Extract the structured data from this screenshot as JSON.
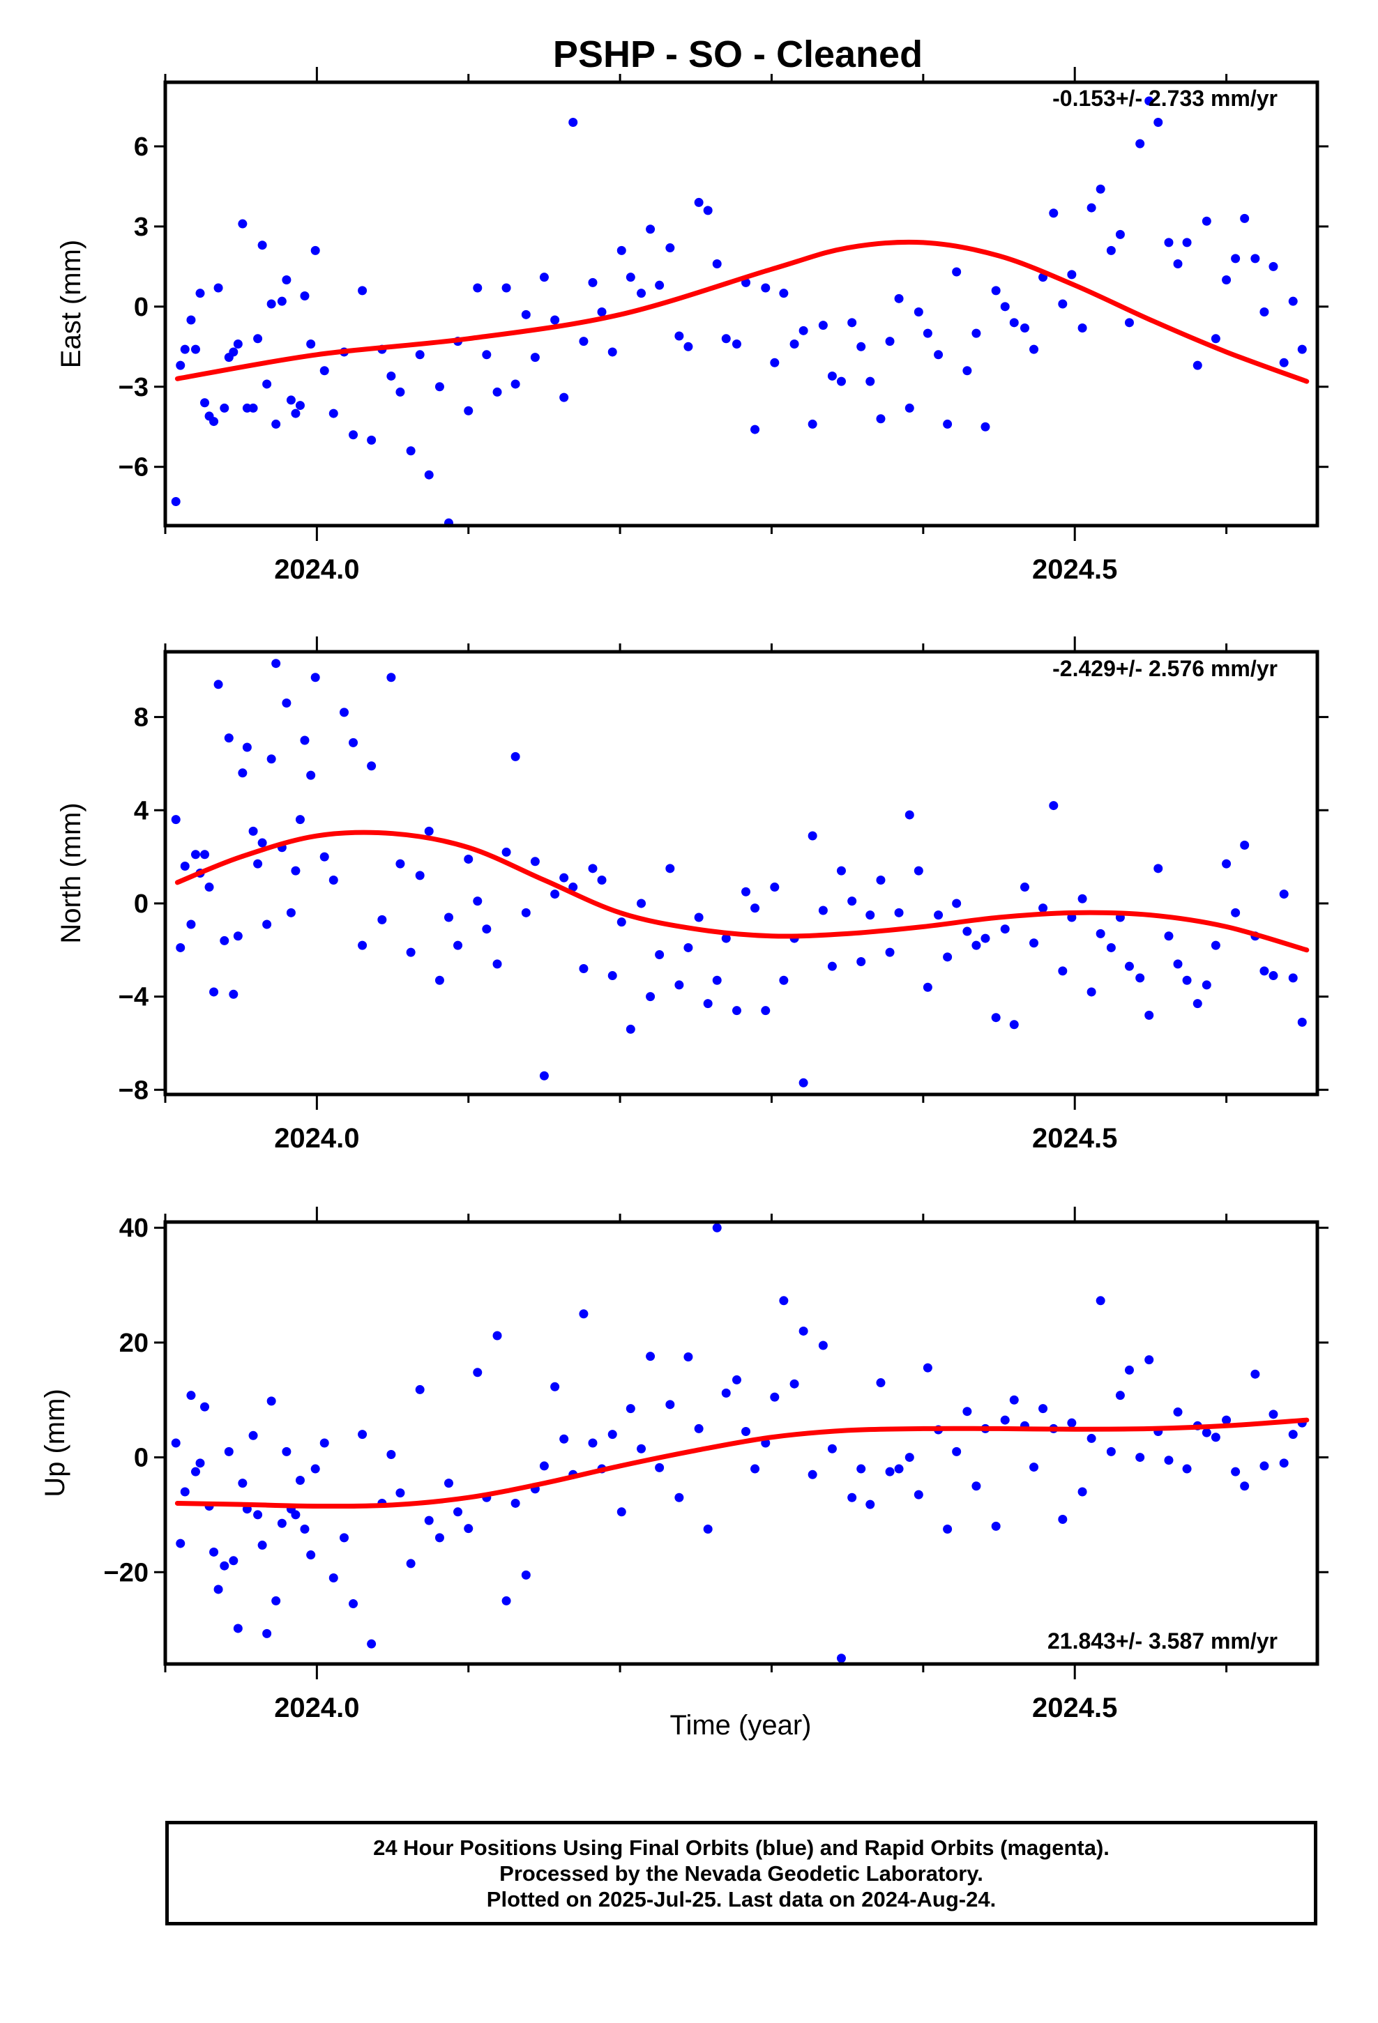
{
  "title": "PSHP  - SO - Cleaned",
  "x_axis_label": "Time (year)",
  "footer": {
    "line1": "24 Hour Positions Using Final Orbits (blue) and Rapid Orbits (magenta).",
    "line2": "Processed by the Nevada Geodetic Laboratory.",
    "line3": "Plotted on 2025-Jul-25. Last data on 2024-Aug-24."
  },
  "colors": {
    "points": "#0000ff",
    "fit": "#ff0000",
    "axes": "#000000"
  },
  "chart_data": [
    {
      "type": "scatter",
      "ylabel": "East (mm)",
      "rate_text": "-0.153+/- 2.733 mm/yr",
      "xlim": [
        2023.9,
        2024.66
      ],
      "ylim": [
        -8.2,
        8.4
      ],
      "yticks": [
        -6,
        -3,
        0,
        3,
        6
      ],
      "xticks": [
        2024.0,
        2024.5
      ],
      "series": [
        {
          "x": [
            2023.907,
            2023.91,
            2023.913,
            2023.917,
            2023.92,
            2023.923,
            2023.926,
            2023.929,
            2023.932,
            2023.935,
            2023.939,
            2023.942,
            2023.945,
            2023.948,
            2023.951,
            2023.954,
            2023.958,
            2023.961,
            2023.964,
            2023.967,
            2023.97,
            2023.973,
            2023.977,
            2023.98,
            2023.983,
            2023.986,
            2023.989,
            2023.992,
            2023.996,
            2023.999,
            2024.005,
            2024.011,
            2024.018,
            2024.024,
            2024.03,
            2024.036,
            2024.043,
            2024.049,
            2024.055,
            2024.062,
            2024.068,
            2024.074,
            2024.081,
            2024.087,
            2024.093,
            2024.1,
            2024.106,
            2024.112,
            2024.119,
            2024.125,
            2024.131,
            2024.138,
            2024.144,
            2024.15,
            2024.157,
            2024.163,
            2024.169,
            2024.176,
            2024.182,
            2024.188,
            2024.195,
            2024.201,
            2024.207,
            2024.214,
            2024.22,
            2024.226,
            2024.233,
            2024.239,
            2024.245,
            2024.252,
            2024.258,
            2024.264,
            2024.27,
            2024.277,
            2024.283,
            2024.289,
            2024.296,
            2024.302,
            2024.308,
            2024.315,
            2024.321,
            2024.327,
            2024.334,
            2024.34,
            2024.346,
            2024.353,
            2024.359,
            2024.365,
            2024.372,
            2024.378,
            2024.384,
            2024.391,
            2024.397,
            2024.403,
            2024.41,
            2024.416,
            2024.422,
            2024.429,
            2024.435,
            2024.441,
            2024.448,
            2024.454,
            2024.46,
            2024.467,
            2024.473,
            2024.479,
            2024.486,
            2024.492,
            2024.498,
            2024.505,
            2024.511,
            2024.517,
            2024.524,
            2024.53,
            2024.536,
            2024.543,
            2024.549,
            2024.555,
            2024.562,
            2024.568,
            2024.574,
            2024.581,
            2024.587,
            2024.593,
            2024.6,
            2024.606,
            2024.612,
            2024.619,
            2024.625,
            2024.631,
            2024.638,
            2024.644,
            2024.65
          ],
          "y": [
            -7.3,
            -2.2,
            -1.6,
            -0.5,
            -1.6,
            0.5,
            -3.6,
            -4.1,
            -4.3,
            0.7,
            -3.8,
            -1.9,
            -1.7,
            -1.4,
            3.1,
            -3.8,
            -3.8,
            -1.2,
            2.3,
            -2.9,
            0.1,
            -4.4,
            0.2,
            1.0,
            -3.5,
            -4.0,
            -3.7,
            0.4,
            -1.4,
            2.1,
            -2.4,
            -4.0,
            -1.7,
            -4.8,
            0.6,
            -5.0,
            -1.6,
            -2.6,
            -3.2,
            -5.4,
            -1.8,
            -6.3,
            -3.0,
            -8.1,
            -1.3,
            -3.9,
            0.7,
            -1.8,
            -3.2,
            0.7,
            -2.9,
            -0.3,
            -1.9,
            1.1,
            -0.5,
            -3.4,
            6.9,
            -1.3,
            0.9,
            -0.2,
            -1.7,
            2.1,
            1.1,
            0.5,
            2.9,
            0.8,
            2.2,
            -1.1,
            -1.5,
            3.9,
            3.6,
            1.6,
            -1.2,
            -1.4,
            0.9,
            -4.6,
            0.7,
            -2.1,
            0.5,
            -1.4,
            -0.9,
            -4.4,
            -0.7,
            -2.6,
            -2.8,
            -0.6,
            -1.5,
            -2.8,
            -4.2,
            -1.3,
            0.3,
            -3.8,
            -0.2,
            -1.0,
            -1.8,
            -4.4,
            1.3,
            -2.4,
            -1.0,
            -4.5,
            0.6,
            0.0,
            -0.6,
            -0.8,
            -1.6,
            1.1,
            3.5,
            0.1,
            1.2,
            -0.8,
            3.7,
            4.4,
            2.1,
            2.7,
            -0.6,
            6.1,
            7.7,
            6.9,
            2.4,
            1.6,
            2.4,
            -2.2,
            3.2,
            -1.2,
            1.0,
            1.8,
            3.3,
            1.8,
            -0.2,
            1.5,
            -2.1,
            0.2,
            -1.6
          ],
          "color": "#0000ff"
        },
        {
          "name": "fit",
          "x": [
            2023.908,
            2024.0,
            2024.1,
            2024.2,
            2024.3,
            2024.35,
            2024.4,
            2024.45,
            2024.5,
            2024.55,
            2024.6,
            2024.653
          ],
          "y": [
            -2.7,
            -1.8,
            -1.2,
            -0.3,
            1.4,
            2.2,
            2.4,
            1.9,
            0.8,
            -0.5,
            -1.7,
            -2.8
          ],
          "color": "#ff0000"
        }
      ]
    },
    {
      "type": "scatter",
      "ylabel": "North (mm)",
      "rate_text": "-2.429+/- 2.576 mm/yr",
      "xlim": [
        2023.9,
        2024.66
      ],
      "ylim": [
        -8.2,
        10.8
      ],
      "yticks": [
        -8,
        -4,
        0,
        4,
        8
      ],
      "xticks": [
        2024.0,
        2024.5
      ],
      "series": [
        {
          "x": [
            2023.907,
            2023.91,
            2023.913,
            2023.917,
            2023.92,
            2023.923,
            2023.926,
            2023.929,
            2023.932,
            2023.935,
            2023.939,
            2023.942,
            2023.945,
            2023.948,
            2023.951,
            2023.954,
            2023.958,
            2023.961,
            2023.964,
            2023.967,
            2023.97,
            2023.973,
            2023.977,
            2023.98,
            2023.983,
            2023.986,
            2023.989,
            2023.992,
            2023.996,
            2023.999,
            2024.005,
            2024.011,
            2024.018,
            2024.024,
            2024.03,
            2024.036,
            2024.043,
            2024.049,
            2024.055,
            2024.062,
            2024.068,
            2024.074,
            2024.081,
            2024.087,
            2024.093,
            2024.1,
            2024.106,
            2024.112,
            2024.119,
            2024.125,
            2024.131,
            2024.138,
            2024.144,
            2024.15,
            2024.157,
            2024.163,
            2024.169,
            2024.176,
            2024.182,
            2024.188,
            2024.195,
            2024.201,
            2024.207,
            2024.214,
            2024.22,
            2024.226,
            2024.233,
            2024.239,
            2024.245,
            2024.252,
            2024.258,
            2024.264,
            2024.27,
            2024.277,
            2024.283,
            2024.289,
            2024.296,
            2024.302,
            2024.308,
            2024.315,
            2024.321,
            2024.327,
            2024.334,
            2024.34,
            2024.346,
            2024.353,
            2024.359,
            2024.365,
            2024.372,
            2024.378,
            2024.384,
            2024.391,
            2024.397,
            2024.403,
            2024.41,
            2024.416,
            2024.422,
            2024.429,
            2024.435,
            2024.441,
            2024.448,
            2024.454,
            2024.46,
            2024.467,
            2024.473,
            2024.479,
            2024.486,
            2024.492,
            2024.498,
            2024.505,
            2024.511,
            2024.517,
            2024.524,
            2024.53,
            2024.536,
            2024.543,
            2024.549,
            2024.555,
            2024.562,
            2024.568,
            2024.574,
            2024.581,
            2024.587,
            2024.593,
            2024.6,
            2024.606,
            2024.612,
            2024.619,
            2024.625,
            2024.631,
            2024.638,
            2024.644,
            2024.65
          ],
          "y": [
            3.6,
            -1.9,
            1.6,
            -0.9,
            2.1,
            1.3,
            2.1,
            0.7,
            -3.8,
            9.4,
            -1.6,
            7.1,
            -3.9,
            -1.4,
            5.6,
            6.7,
            3.1,
            1.7,
            2.6,
            -0.9,
            6.2,
            10.3,
            2.4,
            8.6,
            -0.4,
            1.4,
            3.6,
            7.0,
            5.5,
            9.7,
            2.0,
            1.0,
            8.2,
            6.9,
            -1.8,
            5.9,
            -0.7,
            9.7,
            1.7,
            -2.1,
            1.2,
            3.1,
            -3.3,
            -0.6,
            -1.8,
            1.9,
            0.1,
            -1.1,
            -2.6,
            2.2,
            6.3,
            -0.4,
            1.8,
            -7.4,
            0.4,
            1.1,
            0.7,
            -2.8,
            1.5,
            1.0,
            -3.1,
            -0.8,
            -5.4,
            0.0,
            -4.0,
            -2.2,
            1.5,
            -3.5,
            -1.9,
            -0.6,
            -4.3,
            -3.3,
            -1.5,
            -4.6,
            0.5,
            -0.2,
            -4.6,
            0.7,
            -3.3,
            -1.5,
            -7.7,
            2.9,
            -0.3,
            -2.7,
            1.4,
            0.1,
            -2.5,
            -0.5,
            1.0,
            -2.1,
            -0.4,
            3.8,
            1.4,
            -3.6,
            -0.5,
            -2.3,
            0.0,
            -1.2,
            -1.8,
            -1.5,
            -4.9,
            -1.1,
            -5.2,
            0.7,
            -1.7,
            -0.2,
            4.2,
            -2.9,
            -0.6,
            0.2,
            -3.8,
            -1.3,
            -1.9,
            -0.6,
            -2.7,
            -3.2,
            -4.8,
            1.5,
            -1.4,
            -2.6,
            -3.3,
            -4.3,
            -3.5,
            -1.8,
            1.7,
            -0.4,
            2.5,
            -1.4,
            -2.9,
            -3.1,
            0.4,
            -3.2,
            -5.1
          ],
          "color": "#0000ff"
        },
        {
          "name": "fit",
          "x": [
            2023.908,
            2023.95,
            2024.0,
            2024.05,
            2024.1,
            2024.15,
            2024.2,
            2024.25,
            2024.3,
            2024.35,
            2024.4,
            2024.45,
            2024.5,
            2024.55,
            2024.6,
            2024.653
          ],
          "y": [
            0.9,
            2.0,
            2.9,
            3.0,
            2.4,
            1.0,
            -0.4,
            -1.1,
            -1.4,
            -1.3,
            -1.0,
            -0.6,
            -0.4,
            -0.5,
            -1.0,
            -2.0
          ],
          "color": "#ff0000"
        }
      ]
    },
    {
      "type": "scatter",
      "ylabel": "Up (mm)",
      "rate_text": "21.843+/- 3.587 mm/yr",
      "xlim": [
        2023.9,
        2024.66
      ],
      "ylim": [
        -36,
        41
      ],
      "yticks": [
        -20,
        0,
        20,
        40
      ],
      "xticks": [
        2024.0,
        2024.5
      ],
      "series": [
        {
          "x": [
            2023.907,
            2023.91,
            2023.913,
            2023.917,
            2023.92,
            2023.923,
            2023.926,
            2023.929,
            2023.932,
            2023.935,
            2023.939,
            2023.942,
            2023.945,
            2023.948,
            2023.951,
            2023.954,
            2023.958,
            2023.961,
            2023.964,
            2023.967,
            2023.97,
            2023.973,
            2023.977,
            2023.98,
            2023.983,
            2023.986,
            2023.989,
            2023.992,
            2023.996,
            2023.999,
            2024.005,
            2024.011,
            2024.018,
            2024.024,
            2024.03,
            2024.036,
            2024.043,
            2024.049,
            2024.055,
            2024.062,
            2024.068,
            2024.074,
            2024.081,
            2024.087,
            2024.093,
            2024.1,
            2024.106,
            2024.112,
            2024.119,
            2024.125,
            2024.131,
            2024.138,
            2024.144,
            2024.15,
            2024.157,
            2024.163,
            2024.169,
            2024.176,
            2024.182,
            2024.188,
            2024.195,
            2024.201,
            2024.207,
            2024.214,
            2024.22,
            2024.226,
            2024.233,
            2024.239,
            2024.245,
            2024.252,
            2024.258,
            2024.264,
            2024.27,
            2024.277,
            2024.283,
            2024.289,
            2024.296,
            2024.302,
            2024.308,
            2024.315,
            2024.321,
            2024.327,
            2024.334,
            2024.34,
            2024.346,
            2024.353,
            2024.359,
            2024.365,
            2024.372,
            2024.378,
            2024.384,
            2024.391,
            2024.397,
            2024.403,
            2024.41,
            2024.416,
            2024.422,
            2024.429,
            2024.435,
            2024.441,
            2024.448,
            2024.454,
            2024.46,
            2024.467,
            2024.473,
            2024.479,
            2024.486,
            2024.492,
            2024.498,
            2024.505,
            2024.511,
            2024.517,
            2024.524,
            2024.53,
            2024.536,
            2024.543,
            2024.549,
            2024.555,
            2024.562,
            2024.568,
            2024.574,
            2024.581,
            2024.587,
            2024.593,
            2024.6,
            2024.606,
            2024.612,
            2024.619,
            2024.625,
            2024.631,
            2024.638,
            2024.644,
            2024.65
          ],
          "y": [
            2.5,
            -15.0,
            -6.0,
            10.8,
            -2.5,
            -1.0,
            8.8,
            -8.5,
            -16.5,
            -23.0,
            -18.9,
            1.0,
            -18.0,
            -29.8,
            -4.5,
            -9.0,
            3.8,
            -10.0,
            -15.3,
            -30.7,
            9.8,
            -25.0,
            -11.5,
            1.0,
            -9.0,
            -10.0,
            -4.0,
            -12.5,
            -17.0,
            -2.0,
            2.5,
            -21.0,
            -14.0,
            -25.5,
            4.0,
            -32.5,
            -8.0,
            0.5,
            -6.2,
            -18.5,
            11.8,
            -11.0,
            -14.0,
            -4.5,
            -9.5,
            -12.4,
            14.8,
            -7.0,
            21.2,
            -25.0,
            -8.0,
            -20.5,
            -5.5,
            -1.5,
            12.3,
            3.2,
            -3.0,
            25.0,
            2.5,
            -2.0,
            4.0,
            -9.5,
            8.5,
            1.5,
            17.6,
            -1.8,
            9.2,
            -7.0,
            17.5,
            5.0,
            -12.5,
            40.0,
            11.2,
            13.5,
            4.5,
            -2.0,
            2.5,
            10.5,
            27.3,
            12.8,
            22.0,
            -3.0,
            19.5,
            1.5,
            -35.0,
            -7.0,
            -2.0,
            -8.2,
            13.0,
            -2.5,
            -2.0,
            0.0,
            -6.5,
            15.6,
            4.8,
            -12.5,
            1.0,
            8.0,
            -5.0,
            5.0,
            -12.0,
            6.5,
            10.0,
            5.5,
            -1.7,
            8.5,
            5.0,
            -10.8,
            6.0,
            -6.0,
            3.3,
            27.3,
            1.0,
            10.8,
            15.2,
            0.0,
            17.0,
            4.5,
            -0.5,
            7.9,
            -2.0,
            5.5,
            4.3,
            3.5,
            6.5,
            -2.5,
            -5.0,
            14.5,
            -1.5,
            7.5,
            -1.0,
            4.0,
            6.0
          ],
          "color": "#0000ff"
        },
        {
          "name": "fit",
          "x": [
            2023.908,
            2023.95,
            2024.0,
            2024.05,
            2024.1,
            2024.15,
            2024.2,
            2024.25,
            2024.3,
            2024.35,
            2024.4,
            2024.45,
            2024.5,
            2024.55,
            2024.6,
            2024.653
          ],
          "y": [
            -8.0,
            -8.2,
            -8.5,
            -8.3,
            -7.0,
            -4.5,
            -1.5,
            1.2,
            3.5,
            4.7,
            5.0,
            5.0,
            4.9,
            5.0,
            5.5,
            6.5
          ],
          "color": "#ff0000"
        }
      ]
    }
  ]
}
